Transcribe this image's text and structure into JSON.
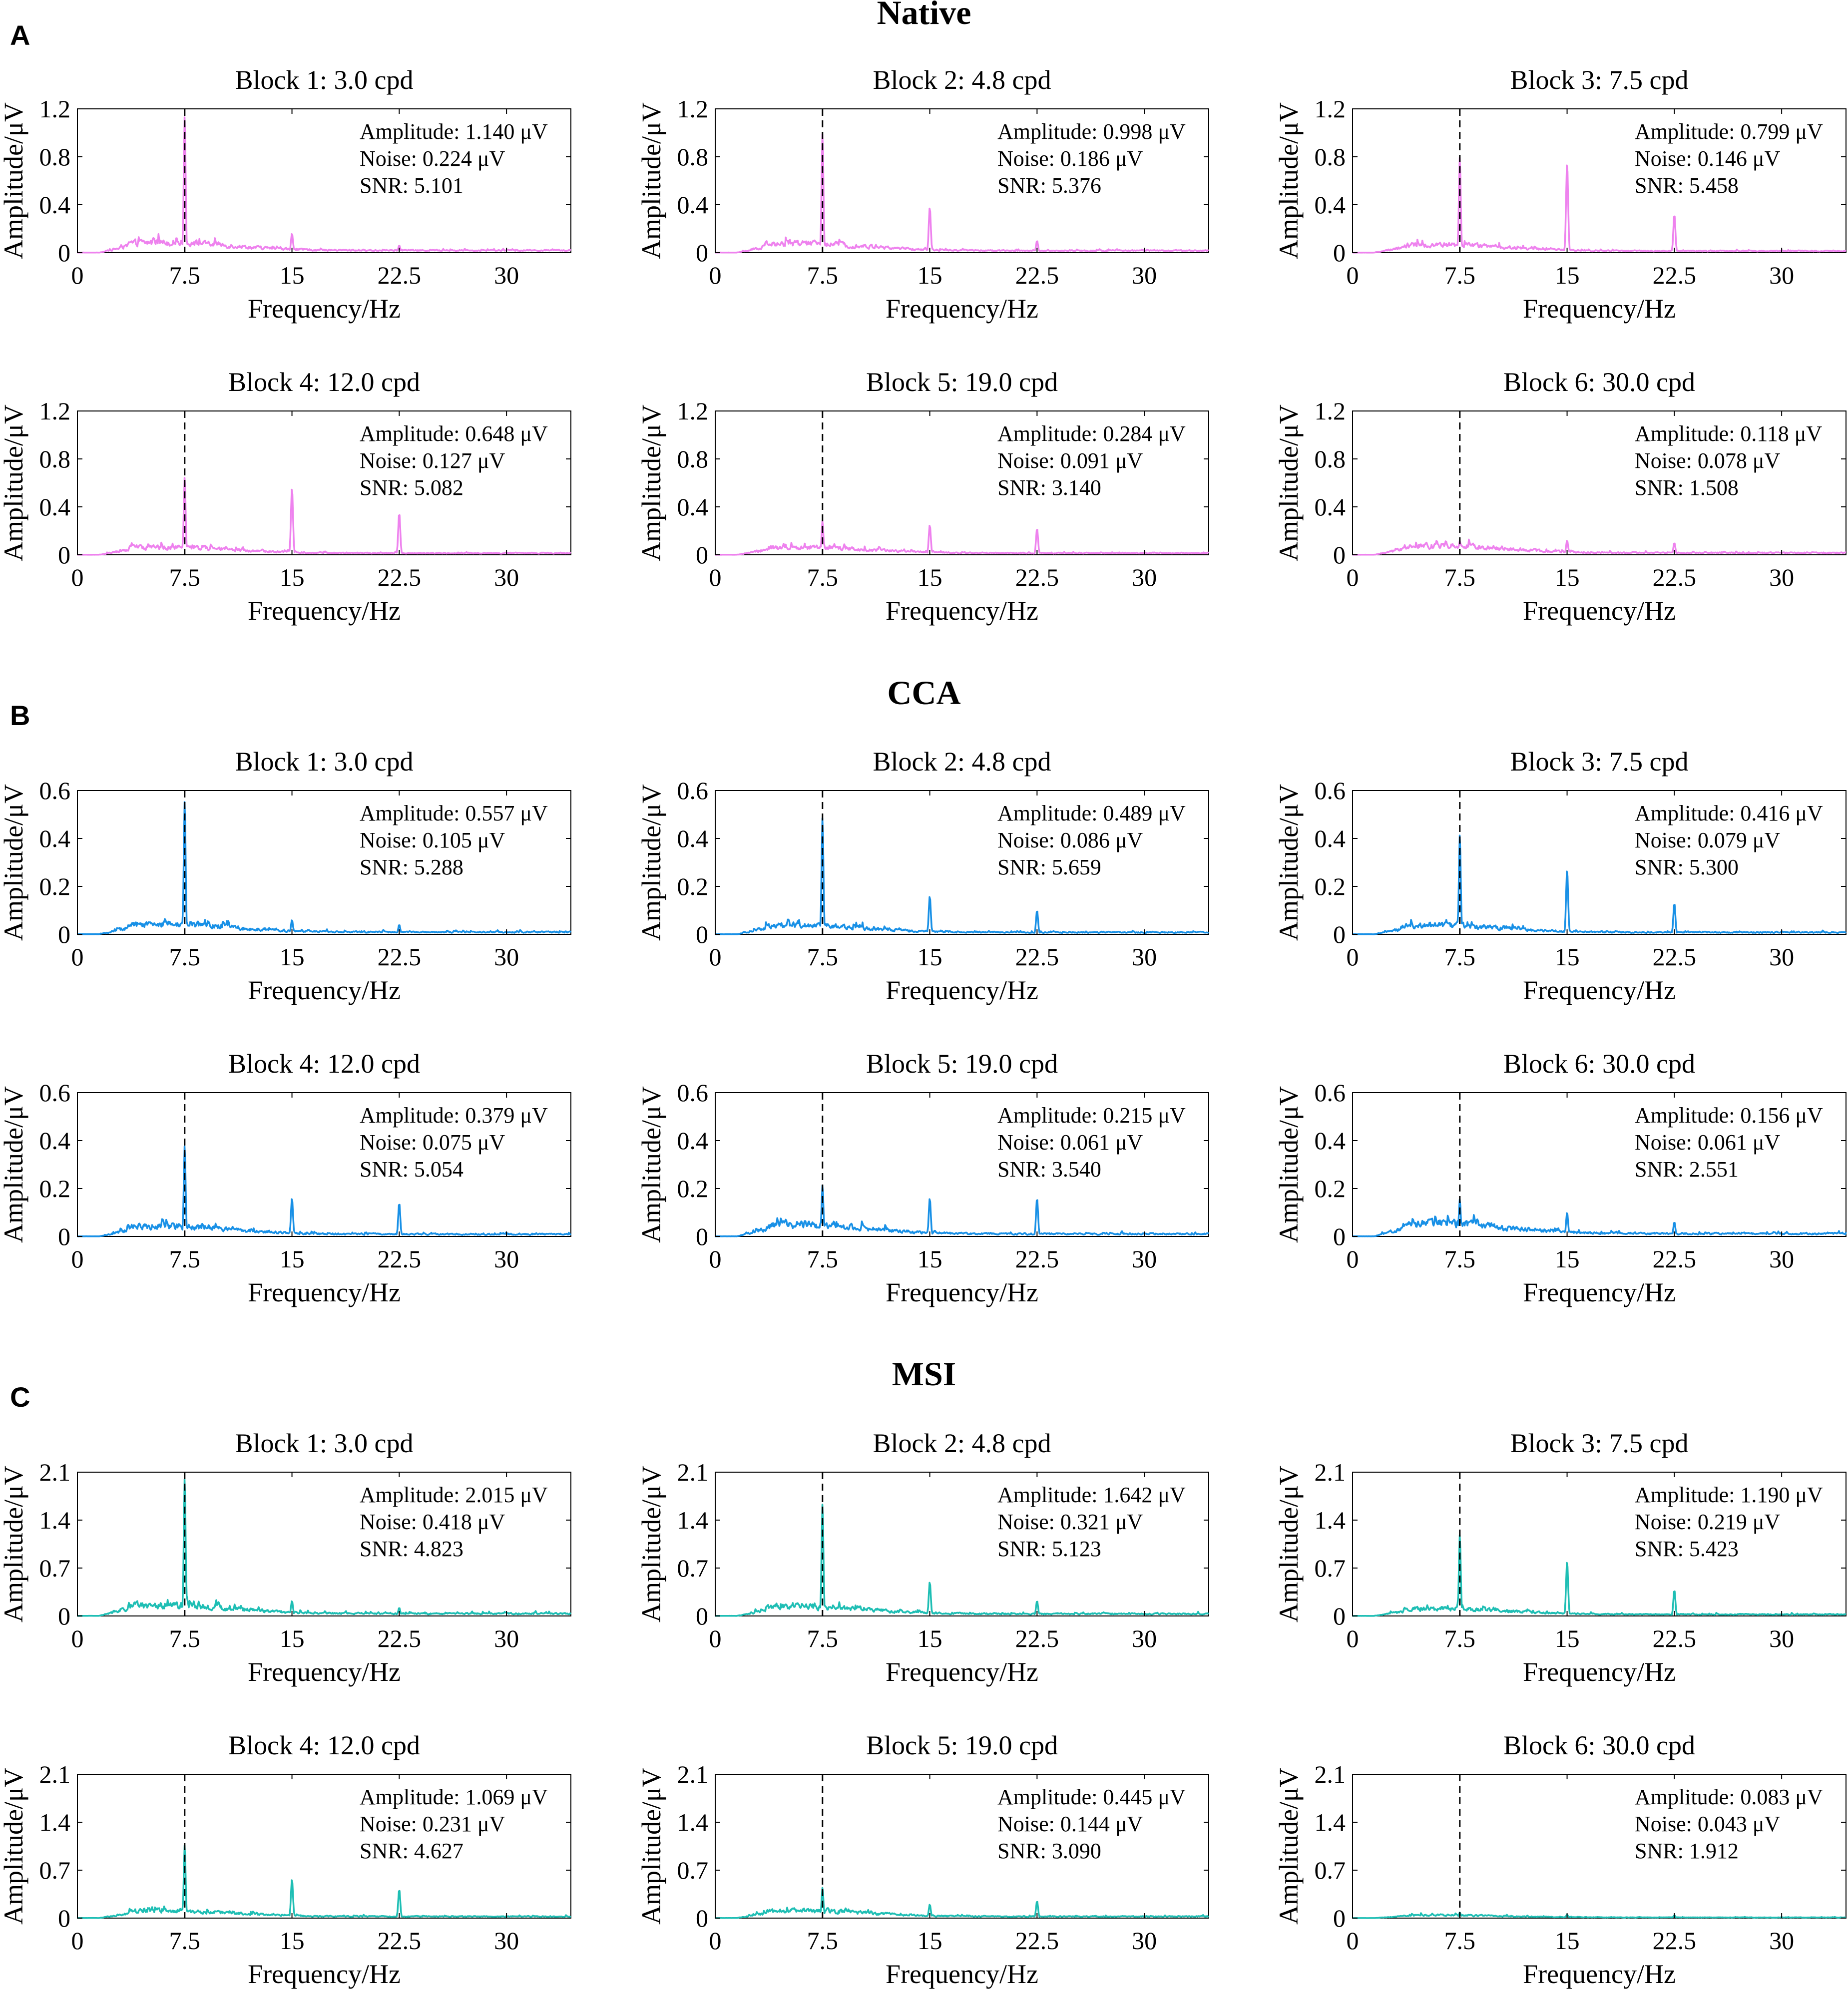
{
  "figure": {
    "panel_letters": [
      "A",
      "B",
      "C"
    ],
    "section_titles": [
      "Native",
      "CCA",
      "MSI"
    ],
    "colors": {
      "native": "#ee82ee",
      "cca": "#1890e6",
      "msi": "#1ebeb4",
      "marker_line": "#000000"
    }
  },
  "chart_data": [
    {
      "type": "line",
      "section": "Native",
      "title": "Block 1: 3.0 cpd",
      "xlabel": "Frequency/Hz",
      "ylabel": "Amplitude/μV",
      "xlim": [
        0,
        34.5
      ],
      "ylim": [
        0,
        1.2
      ],
      "xticks": [
        "0",
        "7.5",
        "15",
        "22.5",
        "30"
      ],
      "yticks": [
        "0",
        "0.4",
        "0.8",
        "1.2"
      ],
      "marker_x": 7.5,
      "annotation": [
        "Amplitude: 1.140 μV",
        "Noise: 0.224 μV",
        "SNR: 5.101"
      ],
      "series": [
        {
          "name": "Native",
          "color": "#ee82ee",
          "peak_value": 1.14,
          "noise_level": 0.08,
          "harmonics": [
            {
              "x": 15,
              "value": 0.16
            },
            {
              "x": 22.5,
              "value": 0.06
            }
          ]
        }
      ]
    },
    {
      "type": "line",
      "section": "Native",
      "title": "Block 2: 4.8 cpd",
      "xlabel": "Frequency/Hz",
      "ylabel": "Amplitude/μV",
      "xlim": [
        0,
        34.5
      ],
      "ylim": [
        0,
        1.2
      ],
      "xticks": [
        "0",
        "7.5",
        "15",
        "22.5",
        "30"
      ],
      "yticks": [
        "0",
        "0.4",
        "0.8",
        "1.2"
      ],
      "marker_x": 7.5,
      "annotation": [
        "Amplitude: 0.998 μV",
        "Noise: 0.186 μV",
        "SNR: 5.376"
      ],
      "series": [
        {
          "name": "Native",
          "color": "#ee82ee",
          "peak_value": 0.998,
          "noise_level": 0.07,
          "harmonics": [
            {
              "x": 15,
              "value": 0.38
            },
            {
              "x": 22.5,
              "value": 0.1
            }
          ]
        }
      ]
    },
    {
      "type": "line",
      "section": "Native",
      "title": "Block 3: 7.5 cpd",
      "xlabel": "Frequency/Hz",
      "ylabel": "Amplitude/μV",
      "xlim": [
        0,
        34.5
      ],
      "ylim": [
        0,
        1.2
      ],
      "xticks": [
        "0",
        "7.5",
        "15",
        "22.5",
        "30"
      ],
      "yticks": [
        "0",
        "0.4",
        "0.8",
        "1.2"
      ],
      "marker_x": 7.5,
      "annotation": [
        "Amplitude: 0.799 μV",
        "Noise: 0.146 μV",
        "SNR: 5.458"
      ],
      "series": [
        {
          "name": "Native",
          "color": "#ee82ee",
          "peak_value": 0.799,
          "noise_level": 0.06,
          "harmonics": [
            {
              "x": 15,
              "value": 0.75
            },
            {
              "x": 22.5,
              "value": 0.32
            }
          ]
        }
      ]
    },
    {
      "type": "line",
      "section": "Native",
      "title": "Block 4: 12.0 cpd",
      "xlabel": "Frequency/Hz",
      "ylabel": "Amplitude/μV",
      "xlim": [
        0,
        34.5
      ],
      "ylim": [
        0,
        1.2
      ],
      "xticks": [
        "0",
        "7.5",
        "15",
        "22.5",
        "30"
      ],
      "yticks": [
        "0",
        "0.4",
        "0.8",
        "1.2"
      ],
      "marker_x": 7.5,
      "annotation": [
        "Amplitude: 0.648 μV",
        "Noise: 0.127 μV",
        "SNR: 5.082"
      ],
      "series": [
        {
          "name": "Native",
          "color": "#ee82ee",
          "peak_value": 0.648,
          "noise_level": 0.06,
          "harmonics": [
            {
              "x": 15,
              "value": 0.56
            },
            {
              "x": 22.5,
              "value": 0.35
            }
          ]
        }
      ]
    },
    {
      "type": "line",
      "section": "Native",
      "title": "Block 5: 19.0 cpd",
      "xlabel": "Frequency/Hz",
      "ylabel": "Amplitude/μV",
      "xlim": [
        0,
        34.5
      ],
      "ylim": [
        0,
        1.2
      ],
      "xticks": [
        "0",
        "7.5",
        "15",
        "22.5",
        "30"
      ],
      "yticks": [
        "0",
        "0.4",
        "0.8",
        "1.2"
      ],
      "marker_x": 7.5,
      "annotation": [
        "Amplitude: 0.284 μV",
        "Noise: 0.091 μV",
        "SNR: 3.140"
      ],
      "series": [
        {
          "name": "Native",
          "color": "#ee82ee",
          "peak_value": 0.284,
          "noise_level": 0.06,
          "harmonics": [
            {
              "x": 15,
              "value": 0.25
            },
            {
              "x": 22.5,
              "value": 0.22
            }
          ]
        }
      ]
    },
    {
      "type": "line",
      "section": "Native",
      "title": "Block 6: 30.0 cpd",
      "xlabel": "Frequency/Hz",
      "ylabel": "Amplitude/μV",
      "xlim": [
        0,
        34.5
      ],
      "ylim": [
        0,
        1.2
      ],
      "xticks": [
        "0",
        "7.5",
        "15",
        "22.5",
        "30"
      ],
      "yticks": [
        "0",
        "0.4",
        "0.8",
        "1.2"
      ],
      "marker_x": 7.5,
      "annotation": [
        "Amplitude: 0.118 μV",
        "Noise: 0.078 μV",
        "SNR: 1.508"
      ],
      "series": [
        {
          "name": "Native",
          "color": "#ee82ee",
          "peak_value": 0.118,
          "noise_level": 0.07,
          "harmonics": [
            {
              "x": 15,
              "value": 0.12
            },
            {
              "x": 22.5,
              "value": 0.1
            }
          ]
        }
      ]
    },
    {
      "type": "line",
      "section": "CCA",
      "title": "Block 1: 3.0 cpd",
      "xlabel": "Frequency/Hz",
      "ylabel": "Amplitude/μV",
      "xlim": [
        0,
        34.5
      ],
      "ylim": [
        0,
        0.6
      ],
      "xticks": [
        "0",
        "7.5",
        "15",
        "22.5",
        "30"
      ],
      "yticks": [
        "0",
        "0.2",
        "0.4",
        "0.6"
      ],
      "marker_x": 7.5,
      "annotation": [
        "Amplitude: 0.557 μV",
        "Noise: 0.105 μV",
        "SNR: 5.288"
      ],
      "series": [
        {
          "name": "CCA",
          "color": "#1890e6",
          "peak_value": 0.557,
          "noise_level": 0.04,
          "harmonics": [
            {
              "x": 15,
              "value": 0.06
            },
            {
              "x": 22.5,
              "value": 0.04
            }
          ]
        }
      ]
    },
    {
      "type": "line",
      "section": "CCA",
      "title": "Block 2: 4.8 cpd",
      "xlabel": "Frequency/Hz",
      "ylabel": "Amplitude/μV",
      "xlim": [
        0,
        34.5
      ],
      "ylim": [
        0,
        0.6
      ],
      "xticks": [
        "0",
        "7.5",
        "15",
        "22.5",
        "30"
      ],
      "yticks": [
        "0",
        "0.2",
        "0.4",
        "0.6"
      ],
      "marker_x": 7.5,
      "annotation": [
        "Amplitude: 0.489 μV",
        "Noise: 0.086 μV",
        "SNR: 5.659"
      ],
      "series": [
        {
          "name": "CCA",
          "color": "#1890e6",
          "peak_value": 0.489,
          "noise_level": 0.035,
          "harmonics": [
            {
              "x": 15,
              "value": 0.16
            },
            {
              "x": 22.5,
              "value": 0.1
            }
          ]
        }
      ]
    },
    {
      "type": "line",
      "section": "CCA",
      "title": "Block 3: 7.5 cpd",
      "xlabel": "Frequency/Hz",
      "ylabel": "Amplitude/μV",
      "xlim": [
        0,
        34.5
      ],
      "ylim": [
        0,
        0.6
      ],
      "xticks": [
        "0",
        "7.5",
        "15",
        "22.5",
        "30"
      ],
      "yticks": [
        "0",
        "0.2",
        "0.4",
        "0.6"
      ],
      "marker_x": 7.5,
      "annotation": [
        "Amplitude: 0.416 μV",
        "Noise: 0.079 μV",
        "SNR: 5.300"
      ],
      "series": [
        {
          "name": "CCA",
          "color": "#1890e6",
          "peak_value": 0.416,
          "noise_level": 0.035,
          "harmonics": [
            {
              "x": 15,
              "value": 0.27
            },
            {
              "x": 22.5,
              "value": 0.13
            }
          ]
        }
      ]
    },
    {
      "type": "line",
      "section": "CCA",
      "title": "Block 4: 12.0 cpd",
      "xlabel": "Frequency/Hz",
      "ylabel": "Amplitude/μV",
      "xlim": [
        0,
        34.5
      ],
      "ylim": [
        0,
        0.6
      ],
      "xticks": [
        "0",
        "7.5",
        "15",
        "22.5",
        "30"
      ],
      "yticks": [
        "0",
        "0.2",
        "0.4",
        "0.6"
      ],
      "marker_x": 7.5,
      "annotation": [
        "Amplitude: 0.379 μV",
        "Noise: 0.075 μV",
        "SNR: 5.054"
      ],
      "series": [
        {
          "name": "CCA",
          "color": "#1890e6",
          "peak_value": 0.379,
          "noise_level": 0.04,
          "harmonics": [
            {
              "x": 15,
              "value": 0.16
            },
            {
              "x": 22.5,
              "value": 0.14
            }
          ]
        }
      ]
    },
    {
      "type": "line",
      "section": "CCA",
      "title": "Block 5: 19.0 cpd",
      "xlabel": "Frequency/Hz",
      "ylabel": "Amplitude/μV",
      "xlim": [
        0,
        34.5
      ],
      "ylim": [
        0,
        0.6
      ],
      "xticks": [
        "0",
        "7.5",
        "15",
        "22.5",
        "30"
      ],
      "yticks": [
        "0",
        "0.2",
        "0.4",
        "0.6"
      ],
      "marker_x": 7.5,
      "annotation": [
        "Amplitude: 0.215 μV",
        "Noise: 0.061 μV",
        "SNR: 3.540"
      ],
      "series": [
        {
          "name": "CCA",
          "color": "#1890e6",
          "peak_value": 0.215,
          "noise_level": 0.045,
          "harmonics": [
            {
              "x": 15,
              "value": 0.16
            },
            {
              "x": 22.5,
              "value": 0.16
            }
          ]
        }
      ]
    },
    {
      "type": "line",
      "section": "CCA",
      "title": "Block 6: 30.0 cpd",
      "xlabel": "Frequency/Hz",
      "ylabel": "Amplitude/μV",
      "xlim": [
        0,
        34.5
      ],
      "ylim": [
        0,
        0.6
      ],
      "xticks": [
        "0",
        "7.5",
        "15",
        "22.5",
        "30"
      ],
      "yticks": [
        "0",
        "0.2",
        "0.4",
        "0.6"
      ],
      "marker_x": 7.5,
      "annotation": [
        "Amplitude: 0.156 μV",
        "Noise: 0.061 μV",
        "SNR: 2.551"
      ],
      "series": [
        {
          "name": "CCA",
          "color": "#1890e6",
          "peak_value": 0.156,
          "noise_level": 0.05,
          "harmonics": [
            {
              "x": 15,
              "value": 0.1
            },
            {
              "x": 22.5,
              "value": 0.06
            }
          ]
        }
      ]
    },
    {
      "type": "line",
      "section": "MSI",
      "title": "Block 1: 3.0 cpd",
      "xlabel": "Frequency/Hz",
      "ylabel": "Amplitude/μV",
      "xlim": [
        0,
        34.5
      ],
      "ylim": [
        0,
        2.1
      ],
      "xticks": [
        "0",
        "7.5",
        "15",
        "22.5",
        "30"
      ],
      "yticks": [
        "0",
        "0.7",
        "1.4",
        "2.1"
      ],
      "marker_x": 7.5,
      "annotation": [
        "Amplitude: 2.015 μV",
        "Noise: 0.418 μV",
        "SNR: 4.823"
      ],
      "series": [
        {
          "name": "MSI",
          "color": "#1ebeb4",
          "peak_value": 2.015,
          "noise_level": 0.15,
          "harmonics": [
            {
              "x": 15,
              "value": 0.22
            },
            {
              "x": 22.5,
              "value": 0.12
            }
          ]
        }
      ]
    },
    {
      "type": "line",
      "section": "MSI",
      "title": "Block 2: 4.8 cpd",
      "xlabel": "Frequency/Hz",
      "ylabel": "Amplitude/μV",
      "xlim": [
        0,
        34.5
      ],
      "ylim": [
        0,
        2.1
      ],
      "xticks": [
        "0",
        "7.5",
        "15",
        "22.5",
        "30"
      ],
      "yticks": [
        "0",
        "0.7",
        "1.4",
        "2.1"
      ],
      "marker_x": 7.5,
      "annotation": [
        "Amplitude: 1.642 μV",
        "Noise: 0.321 μV",
        "SNR: 5.123"
      ],
      "series": [
        {
          "name": "MSI",
          "color": "#1ebeb4",
          "peak_value": 1.642,
          "noise_level": 0.13,
          "harmonics": [
            {
              "x": 15,
              "value": 0.5
            },
            {
              "x": 22.5,
              "value": 0.22
            }
          ]
        }
      ]
    },
    {
      "type": "line",
      "section": "MSI",
      "title": "Block 3: 7.5 cpd",
      "xlabel": "Frequency/Hz",
      "ylabel": "Amplitude/μV",
      "xlim": [
        0,
        34.5
      ],
      "ylim": [
        0,
        2.1
      ],
      "xticks": [
        "0",
        "7.5",
        "15",
        "22.5",
        "30"
      ],
      "yticks": [
        "0",
        "0.7",
        "1.4",
        "2.1"
      ],
      "marker_x": 7.5,
      "annotation": [
        "Amplitude: 1.190 μV",
        "Noise: 0.219 μV",
        "SNR: 5.423"
      ],
      "series": [
        {
          "name": "MSI",
          "color": "#1ebeb4",
          "peak_value": 1.19,
          "noise_level": 0.1,
          "harmonics": [
            {
              "x": 15,
              "value": 0.8
            },
            {
              "x": 22.5,
              "value": 0.38
            }
          ]
        }
      ]
    },
    {
      "type": "line",
      "section": "MSI",
      "title": "Block 4: 12.0 cpd",
      "xlabel": "Frequency/Hz",
      "ylabel": "Amplitude/μV",
      "xlim": [
        0,
        34.5
      ],
      "ylim": [
        0,
        2.1
      ],
      "xticks": [
        "0",
        "7.5",
        "15",
        "22.5",
        "30"
      ],
      "yticks": [
        "0",
        "0.7",
        "1.4",
        "2.1"
      ],
      "marker_x": 7.5,
      "annotation": [
        "Amplitude: 1.069 μV",
        "Noise: 0.231 μV",
        "SNR: 4.627"
      ],
      "series": [
        {
          "name": "MSI",
          "color": "#1ebeb4",
          "peak_value": 1.069,
          "noise_level": 0.1,
          "harmonics": [
            {
              "x": 15,
              "value": 0.57
            },
            {
              "x": 22.5,
              "value": 0.42
            }
          ]
        }
      ]
    },
    {
      "type": "line",
      "section": "MSI",
      "title": "Block 5: 19.0 cpd",
      "xlabel": "Frequency/Hz",
      "ylabel": "Amplitude/μV",
      "xlim": [
        0,
        34.5
      ],
      "ylim": [
        0,
        2.1
      ],
      "xticks": [
        "0",
        "7.5",
        "15",
        "22.5",
        "30"
      ],
      "yticks": [
        "0",
        "0.7",
        "1.4",
        "2.1"
      ],
      "marker_x": 7.5,
      "annotation": [
        "Amplitude: 0.445 μV",
        "Noise: 0.144 μV",
        "SNR: 3.090"
      ],
      "series": [
        {
          "name": "MSI",
          "color": "#1ebeb4",
          "peak_value": 0.445,
          "noise_level": 0.1,
          "harmonics": [
            {
              "x": 15,
              "value": 0.2
            },
            {
              "x": 22.5,
              "value": 0.25
            }
          ]
        }
      ]
    },
    {
      "type": "line",
      "section": "MSI",
      "title": "Block 6: 30.0 cpd",
      "xlabel": "Frequency/Hz",
      "ylabel": "Amplitude/μV",
      "xlim": [
        0,
        34.5
      ],
      "ylim": [
        0,
        2.1
      ],
      "xticks": [
        "0",
        "7.5",
        "15",
        "22.5",
        "30"
      ],
      "yticks": [
        "0",
        "0.7",
        "1.4",
        "2.1"
      ],
      "marker_x": 7.5,
      "annotation": [
        "Amplitude: 0.083 μV",
        "Noise: 0.043 μV",
        "SNR: 1.912"
      ],
      "series": [
        {
          "name": "MSI",
          "color": "#1ebeb4",
          "peak_value": 0.083,
          "noise_level": 0.04,
          "harmonics": [
            {
              "x": 15,
              "value": 0.05
            },
            {
              "x": 22.5,
              "value": 0.04
            }
          ]
        }
      ]
    }
  ]
}
